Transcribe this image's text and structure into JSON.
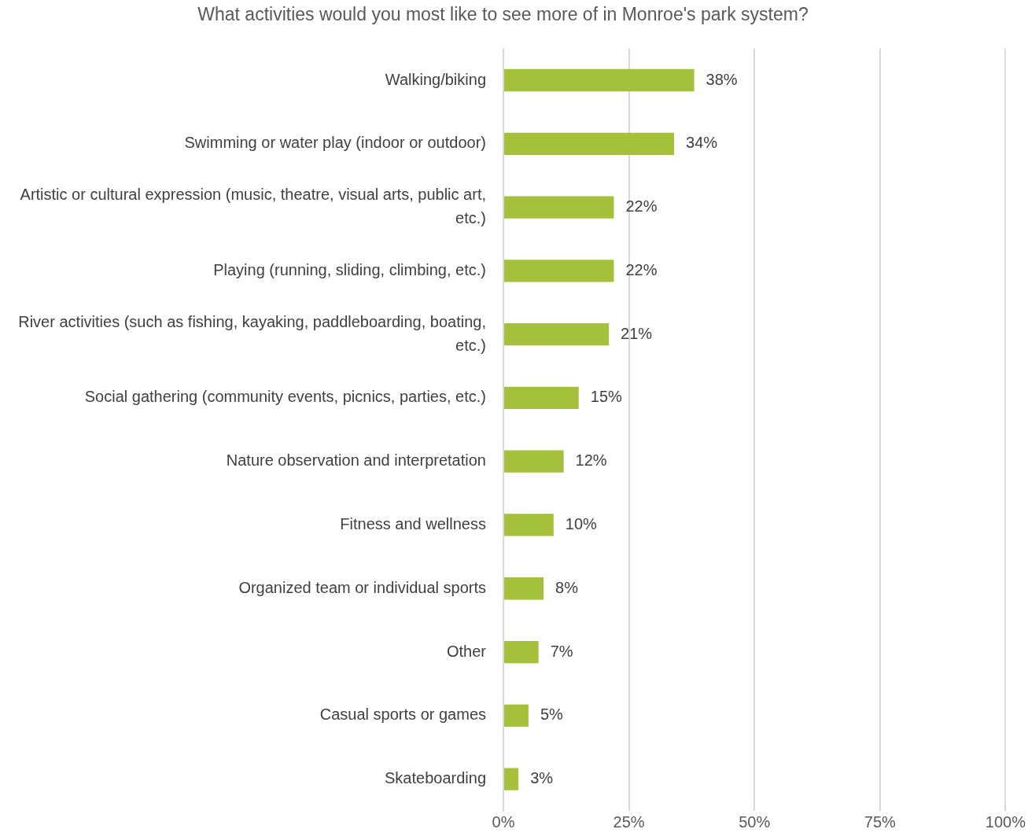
{
  "chart_data": {
    "type": "bar",
    "orientation": "horizontal",
    "title": "What activities would you most like to see more of in Monroe's park system?",
    "categories": [
      "Walking/biking",
      "Swimming or water play (indoor or outdoor)",
      "Artistic or cultural expression (music, theatre, visual arts, public art, etc.)",
      "Playing (running, sliding, climbing, etc.)",
      "River activities (such as fishing, kayaking, paddleboarding, boating, etc.)",
      "Social gathering (community events, picnics, parties, etc.)",
      "Nature observation and interpretation",
      "Fitness and wellness",
      "Organized team or individual sports",
      "Other",
      "Casual sports or games",
      "Skateboarding"
    ],
    "values": [
      38,
      34,
      22,
      22,
      21,
      15,
      12,
      10,
      8,
      7,
      5,
      3
    ],
    "value_labels": [
      "38%",
      "34%",
      "22%",
      "22%",
      "21%",
      "15%",
      "12%",
      "10%",
      "8%",
      "7%",
      "5%",
      "3%"
    ],
    "color": "#a5c03a",
    "xlim": [
      0,
      100
    ],
    "xticks": [
      {
        "value": 0,
        "label": "0%"
      },
      {
        "value": 25,
        "label": "25%"
      },
      {
        "value": 50,
        "label": "50%"
      },
      {
        "value": 75,
        "label": "75%"
      },
      {
        "value": 100,
        "label": "100%"
      }
    ],
    "grid": "x",
    "legend": false
  }
}
